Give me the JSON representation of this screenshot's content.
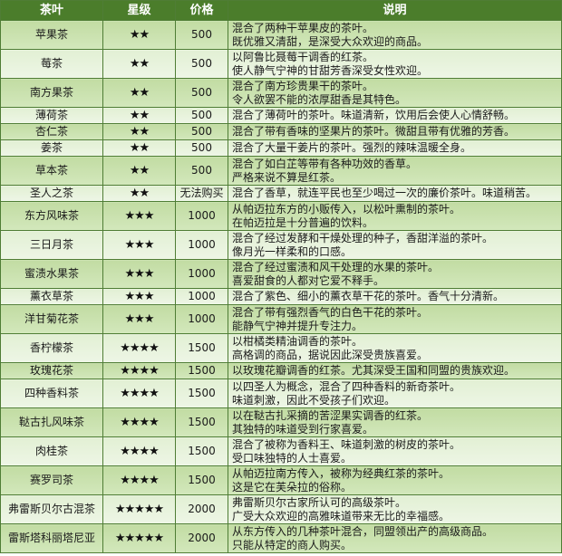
{
  "headers": [
    "茶叶",
    "星级",
    "价格",
    "说明"
  ],
  "rows": [
    {
      "name": "苹果茶",
      "stars": "★★",
      "price": "500",
      "desc": [
        "混合了两种干苹果皮的茶叶。",
        "既优雅又清甜，是深受大众欢迎的商品。"
      ]
    },
    {
      "name": "莓茶",
      "stars": "★★",
      "price": "500",
      "desc": [
        "以阿鲁比聂莓干调香的红茶。",
        "使人静气宁神的甘甜芳香深受女性欢迎。"
      ]
    },
    {
      "name": "南方果茶",
      "stars": "★★",
      "price": "500",
      "desc": [
        "混合了南方珍贵果干的茶叶。",
        "令人欲罢不能的浓厚甜香是其特色。"
      ]
    },
    {
      "name": "薄荷茶",
      "stars": "★★",
      "price": "500",
      "desc": [
        "混合了薄荷叶的茶叶。味道清新，饮用后会使人心情舒畅。"
      ]
    },
    {
      "name": "杏仁茶",
      "stars": "★★",
      "price": "500",
      "desc": [
        "混合了带有香味的坚果片的茶叶。微甜且带有优雅的芳香。"
      ]
    },
    {
      "name": "姜茶",
      "stars": "★★",
      "price": "500",
      "desc": [
        "混合了大量干姜片的茶叶。强烈的辣味温暖全身。"
      ]
    },
    {
      "name": "草本茶",
      "stars": "★★",
      "price": "500",
      "desc": [
        "混合了如白芷等带有各种功效的香草。",
        "严格来说不算是红茶。"
      ]
    },
    {
      "name": "圣人之茶",
      "stars": "★★",
      "price": "无法购买",
      "desc": [
        "混合了香草，就连平民也至少喝过一次的廉价茶叶。味道稍苦。"
      ]
    },
    {
      "name": "东方风味茶",
      "stars": "★★★",
      "price": "1000",
      "desc": [
        "从帕迈拉东方的小贩传入，以松叶熏制的茶叶。",
        "在帕迈拉是十分普遍的饮料。"
      ]
    },
    {
      "name": "三日月茶",
      "stars": "★★★",
      "price": "1000",
      "desc": [
        "混合了经过发酵和干燥处理的种子，香甜洋溢的茶叶。",
        "像月光一样柔和的口感。"
      ]
    },
    {
      "name": "蜜渍水果茶",
      "stars": "★★★",
      "price": "1000",
      "desc": [
        "混合了经过蜜渍和风干处理的水果的茶叶。",
        "喜爱甜食的人都对它爱不释手。"
      ]
    },
    {
      "name": "薰衣草茶",
      "stars": "★★★",
      "price": "1000",
      "desc": [
        "混合了紫色、细小的薰衣草干花的茶叶。香气十分清新。"
      ]
    },
    {
      "name": "洋甘菊花茶",
      "stars": "★★★",
      "price": "1000",
      "desc": [
        "混合了带有强烈香气的白色干花的茶叶。",
        "能静气宁神并提升专注力。"
      ]
    },
    {
      "name": "香柠檬茶",
      "stars": "★★★★",
      "price": "1500",
      "desc": [
        "以柑橘类精油调香的茶叶。",
        "高格调的商品，据说因此深受贵族喜爱。"
      ]
    },
    {
      "name": "玫瑰花茶",
      "stars": "★★★★",
      "price": "1500",
      "desc": [
        "以玫瑰花瓣调香的红茶。尤其深受王国和同盟的贵族欢迎。"
      ]
    },
    {
      "name": "四种香料茶",
      "stars": "★★★★",
      "price": "1500",
      "desc": [
        "以四圣人为概念，混合了四种香料的新奇茶叶。",
        "味道刺激，因此不受孩子们欢迎。"
      ]
    },
    {
      "name": "鞑古扎风味茶",
      "stars": "★★★★",
      "price": "1500",
      "desc": [
        "以在鞑古扎采摘的苦涩果实调香的红茶。",
        "其独特的味道受到行家喜爱。"
      ]
    },
    {
      "name": "肉桂茶",
      "stars": "★★★★",
      "price": "1500",
      "desc": [
        "混合了被称为香料王、味道刺激的树皮的茶叶。",
        "受口味独特的人士喜爱。"
      ]
    },
    {
      "name": "赛罗司茶",
      "stars": "★★★★",
      "price": "1500",
      "desc": [
        "从帕迈拉南方传入，被称为经典红茶的茶叶。",
        "这是它在芙朵拉的俗称。"
      ]
    },
    {
      "name": "弗雷斯贝尔古混茶",
      "stars": "★★★★★",
      "price": "2000",
      "desc": [
        "弗雷斯贝尔古家所认可的高级茶叶。",
        "广受大众欢迎的高雅味道带来无比的幸福感。"
      ]
    },
    {
      "name": "雷斯塔科丽塔尼亚",
      "stars": "★★★★★",
      "price": "2000",
      "desc": [
        "从东方传入的几种茶叶混合，同盟领出产的高级商品。",
        "只能从特定的商人购买。"
      ]
    }
  ],
  "colors": {
    "header": "#4b7d2b",
    "row_dark": "#c8e0ab",
    "row_light": "#e8f3dc",
    "border": "#4f7d35"
  }
}
